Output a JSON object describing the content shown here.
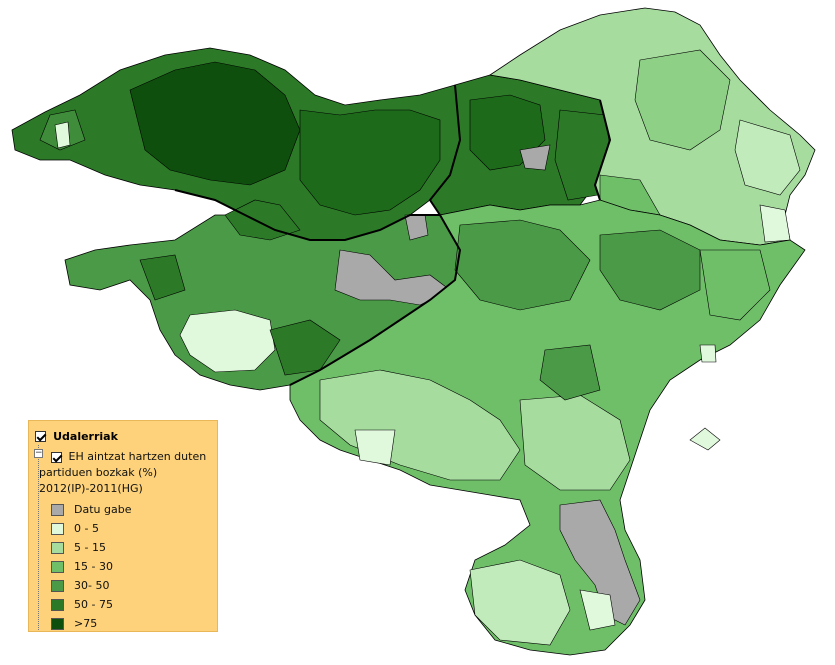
{
  "legend": {
    "layer_title": "Udalerriak",
    "sublayer_line1": "EH aintzat hartzen duten",
    "sublayer_line2": "partiduen bozkak (%)",
    "sublayer_line3": "2012(IP)-2011(HG)",
    "items": [
      {
        "label": "Datu gabe",
        "color": "#a9a9a9"
      },
      {
        "label": "0 - 5",
        "color": "#e0f8dc"
      },
      {
        "label": "5 - 15",
        "color": "#a6dd9f"
      },
      {
        "label": "15 - 30",
        "color": "#6fbf69"
      },
      {
        "label": "30- 50",
        "color": "#4b9a47"
      },
      {
        "label": "50 - 75",
        "color": "#2c7a28"
      },
      {
        "label": ">75",
        "color": "#0f4f0d"
      }
    ]
  },
  "map": {
    "border_color": "#000000"
  }
}
